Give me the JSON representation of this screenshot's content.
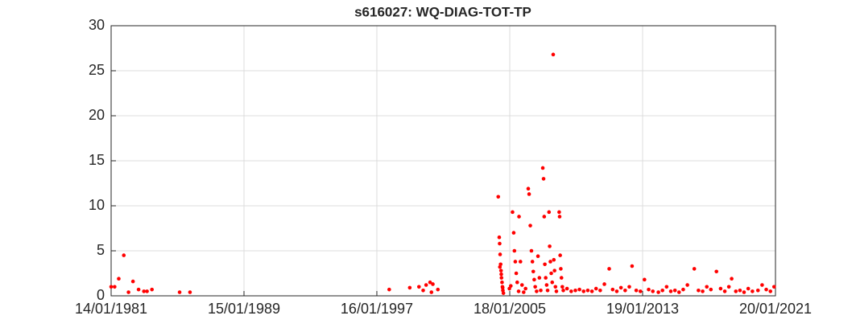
{
  "chart_data": {
    "type": "scatter",
    "title": "s616027: WQ-DIAG-TOT-TP",
    "color": "#ff0000",
    "grid": true,
    "xlim": [
      "1981-01-14",
      "2021-01-20"
    ],
    "xticks": [
      {
        "value": "1981-01-14",
        "label": "14/01/1981"
      },
      {
        "value": "1989-01-15",
        "label": "15/01/1989"
      },
      {
        "value": "1997-01-16",
        "label": "16/01/1997"
      },
      {
        "value": "2005-01-18",
        "label": "18/01/2005"
      },
      {
        "value": "2013-01-19",
        "label": "19/01/2013"
      },
      {
        "value": "2021-01-20",
        "label": "20/01/2021"
      }
    ],
    "ylim": [
      0,
      30
    ],
    "yticks": [
      0,
      5,
      10,
      15,
      20,
      25,
      30
    ],
    "x": [
      "1981-01-14",
      "1981-04-01",
      "1981-07-01",
      "1981-10-20",
      "1982-02-01",
      "1982-05-10",
      "1982-09-10",
      "1983-01-05",
      "1983-03-15",
      "1983-07-01",
      "1985-03-01",
      "1985-10-15",
      "1997-10-15",
      "1999-01-10",
      "1999-08-01",
      "1999-11-01",
      "2000-01-05",
      "2000-04-01",
      "2000-06-01",
      "2000-09-20",
      "2000-05-01",
      "2004-05-10",
      "2004-06-01",
      "2004-06-10",
      "2004-06-20",
      "2004-07-01",
      "2004-07-10",
      "2004-07-20",
      "2004-08-01",
      "2004-08-10",
      "2004-08-20",
      "2004-09-01",
      "2004-06-15",
      "2004-07-15",
      "2004-08-15",
      "2005-01-10",
      "2005-02-10",
      "2005-03-20",
      "2005-04-15",
      "2005-05-01",
      "2005-05-20",
      "2005-06-10",
      "2005-07-01",
      "2005-08-01",
      "2005-08-10",
      "2005-09-10",
      "2005-10-15",
      "2005-11-20",
      "2006-01-01",
      "2006-03-01",
      "2006-03-20",
      "2006-04-15",
      "2006-05-10",
      "2006-06-01",
      "2006-06-20",
      "2006-07-10",
      "2006-08-01",
      "2006-09-01",
      "2006-10-01",
      "2006-11-01",
      "2006-12-01",
      "2007-01-15",
      "2007-02-01",
      "2007-02-15",
      "2007-03-01",
      "2007-03-20",
      "2007-04-10",
      "2007-05-01",
      "2007-06-01",
      "2007-06-15",
      "2007-07-01",
      "2007-07-20",
      "2007-08-10",
      "2007-09-01",
      "2007-09-15",
      "2007-10-01",
      "2007-10-20",
      "2007-11-10",
      "2008-01-10",
      "2008-01-20",
      "2008-02-01",
      "2008-02-15",
      "2008-03-01",
      "2008-03-20",
      "2008-04-10",
      "2008-07-01",
      "2008-10-01",
      "2009-01-01",
      "2009-04-01",
      "2009-07-01",
      "2009-10-01",
      "2010-01-01",
      "2010-04-01",
      "2010-07-01",
      "2010-10-01",
      "2011-01-15",
      "2011-04-01",
      "2011-07-01",
      "2011-10-01",
      "2012-01-01",
      "2012-04-01",
      "2012-06-01",
      "2012-09-01",
      "2012-12-01",
      "2013-03-01",
      "2013-06-01",
      "2013-09-01",
      "2014-01-01",
      "2014-04-01",
      "2014-07-01",
      "2014-10-01",
      "2015-01-01",
      "2015-04-01",
      "2015-07-01",
      "2015-10-01",
      "2016-03-01",
      "2016-06-01",
      "2016-09-01",
      "2016-12-01",
      "2017-03-01",
      "2017-07-01",
      "2017-10-01",
      "2018-01-01",
      "2018-04-01",
      "2018-06-01",
      "2018-09-01",
      "2018-12-01",
      "2019-03-01",
      "2019-06-01",
      "2019-09-01",
      "2020-01-01",
      "2020-04-01",
      "2020-07-01",
      "2020-10-01",
      "2020-12-20"
    ],
    "values": [
      1.0,
      1.0,
      1.9,
      4.5,
      0.4,
      1.6,
      0.7,
      0.5,
      0.5,
      0.7,
      0.4,
      0.4,
      0.7,
      0.9,
      1.0,
      0.6,
      1.2,
      1.5,
      1.3,
      0.7,
      0.4,
      11.0,
      6.5,
      5.8,
      4.6,
      3.5,
      2.8,
      2.0,
      1.5,
      1.0,
      0.6,
      0.3,
      3.2,
      2.4,
      0.9,
      0.8,
      1.1,
      9.3,
      7.0,
      5.0,
      3.8,
      2.5,
      1.5,
      0.5,
      8.8,
      3.8,
      1.2,
      0.4,
      0.8,
      11.9,
      11.3,
      7.8,
      5.0,
      3.8,
      2.7,
      1.8,
      1.0,
      0.5,
      4.4,
      2.0,
      0.6,
      14.2,
      13.0,
      8.8,
      3.5,
      2.0,
      1.2,
      0.6,
      9.3,
      5.5,
      3.8,
      2.5,
      1.5,
      26.8,
      4.0,
      2.8,
      1.0,
      0.5,
      9.3,
      8.8,
      4.5,
      3.0,
      2.0,
      1.0,
      0.6,
      0.8,
      0.5,
      0.6,
      0.7,
      0.5,
      0.6,
      0.5,
      0.8,
      0.6,
      1.3,
      3.0,
      0.7,
      0.5,
      0.9,
      0.6,
      1.0,
      3.3,
      0.6,
      0.5,
      1.8,
      0.7,
      0.5,
      0.4,
      0.6,
      1.0,
      0.5,
      0.6,
      0.4,
      0.7,
      1.2,
      3.0,
      0.6,
      0.5,
      1.0,
      0.7,
      2.7,
      0.8,
      0.5,
      1.0,
      1.9,
      0.5,
      0.6,
      0.4,
      0.8,
      0.5,
      0.6,
      1.2,
      0.7,
      0.5,
      1.0
    ]
  }
}
